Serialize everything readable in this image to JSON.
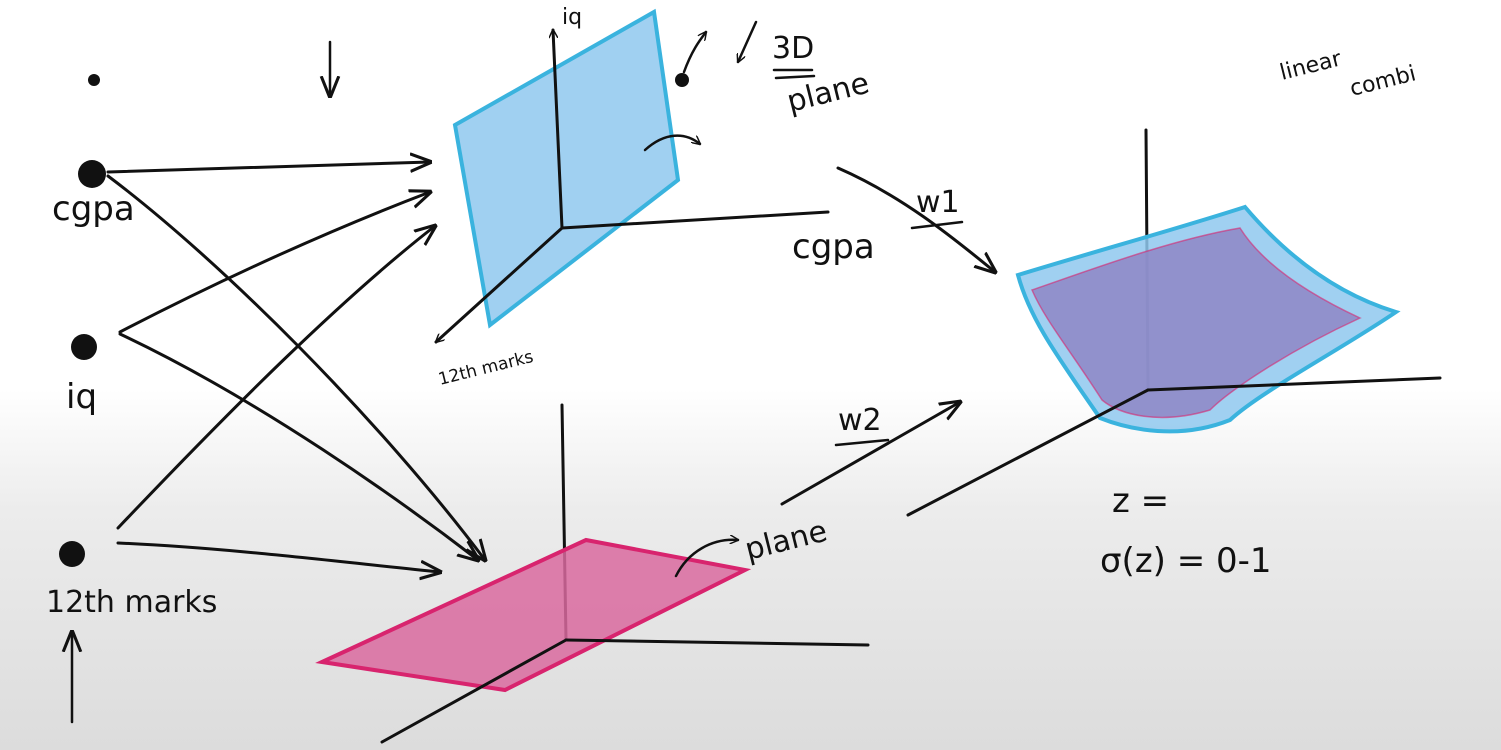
{
  "inputs": {
    "cgpa": "cgpa",
    "iq": "iq",
    "marks": "12th marks"
  },
  "plane1": {
    "axis_iq": "iq",
    "axis_cgpa": "cgpa",
    "axis_marks": "12th marks",
    "note_3d": "3D",
    "note_plane": "plane"
  },
  "plane2": {
    "note_plane": "plane"
  },
  "weights": {
    "w1": "w1",
    "w2": "w2"
  },
  "output": {
    "note_line1": "linear",
    "note_line2": "combi",
    "z": "z =",
    "sigma": "σ(z) = 0-1"
  },
  "colors": {
    "ink": "#111111",
    "blue_fill": "#8fc8ee",
    "blue_edge": "#3ab3de",
    "pink_fill": "#d96a9f",
    "pink_edge": "#d8246e",
    "purple_fill": "#8e86c6"
  }
}
